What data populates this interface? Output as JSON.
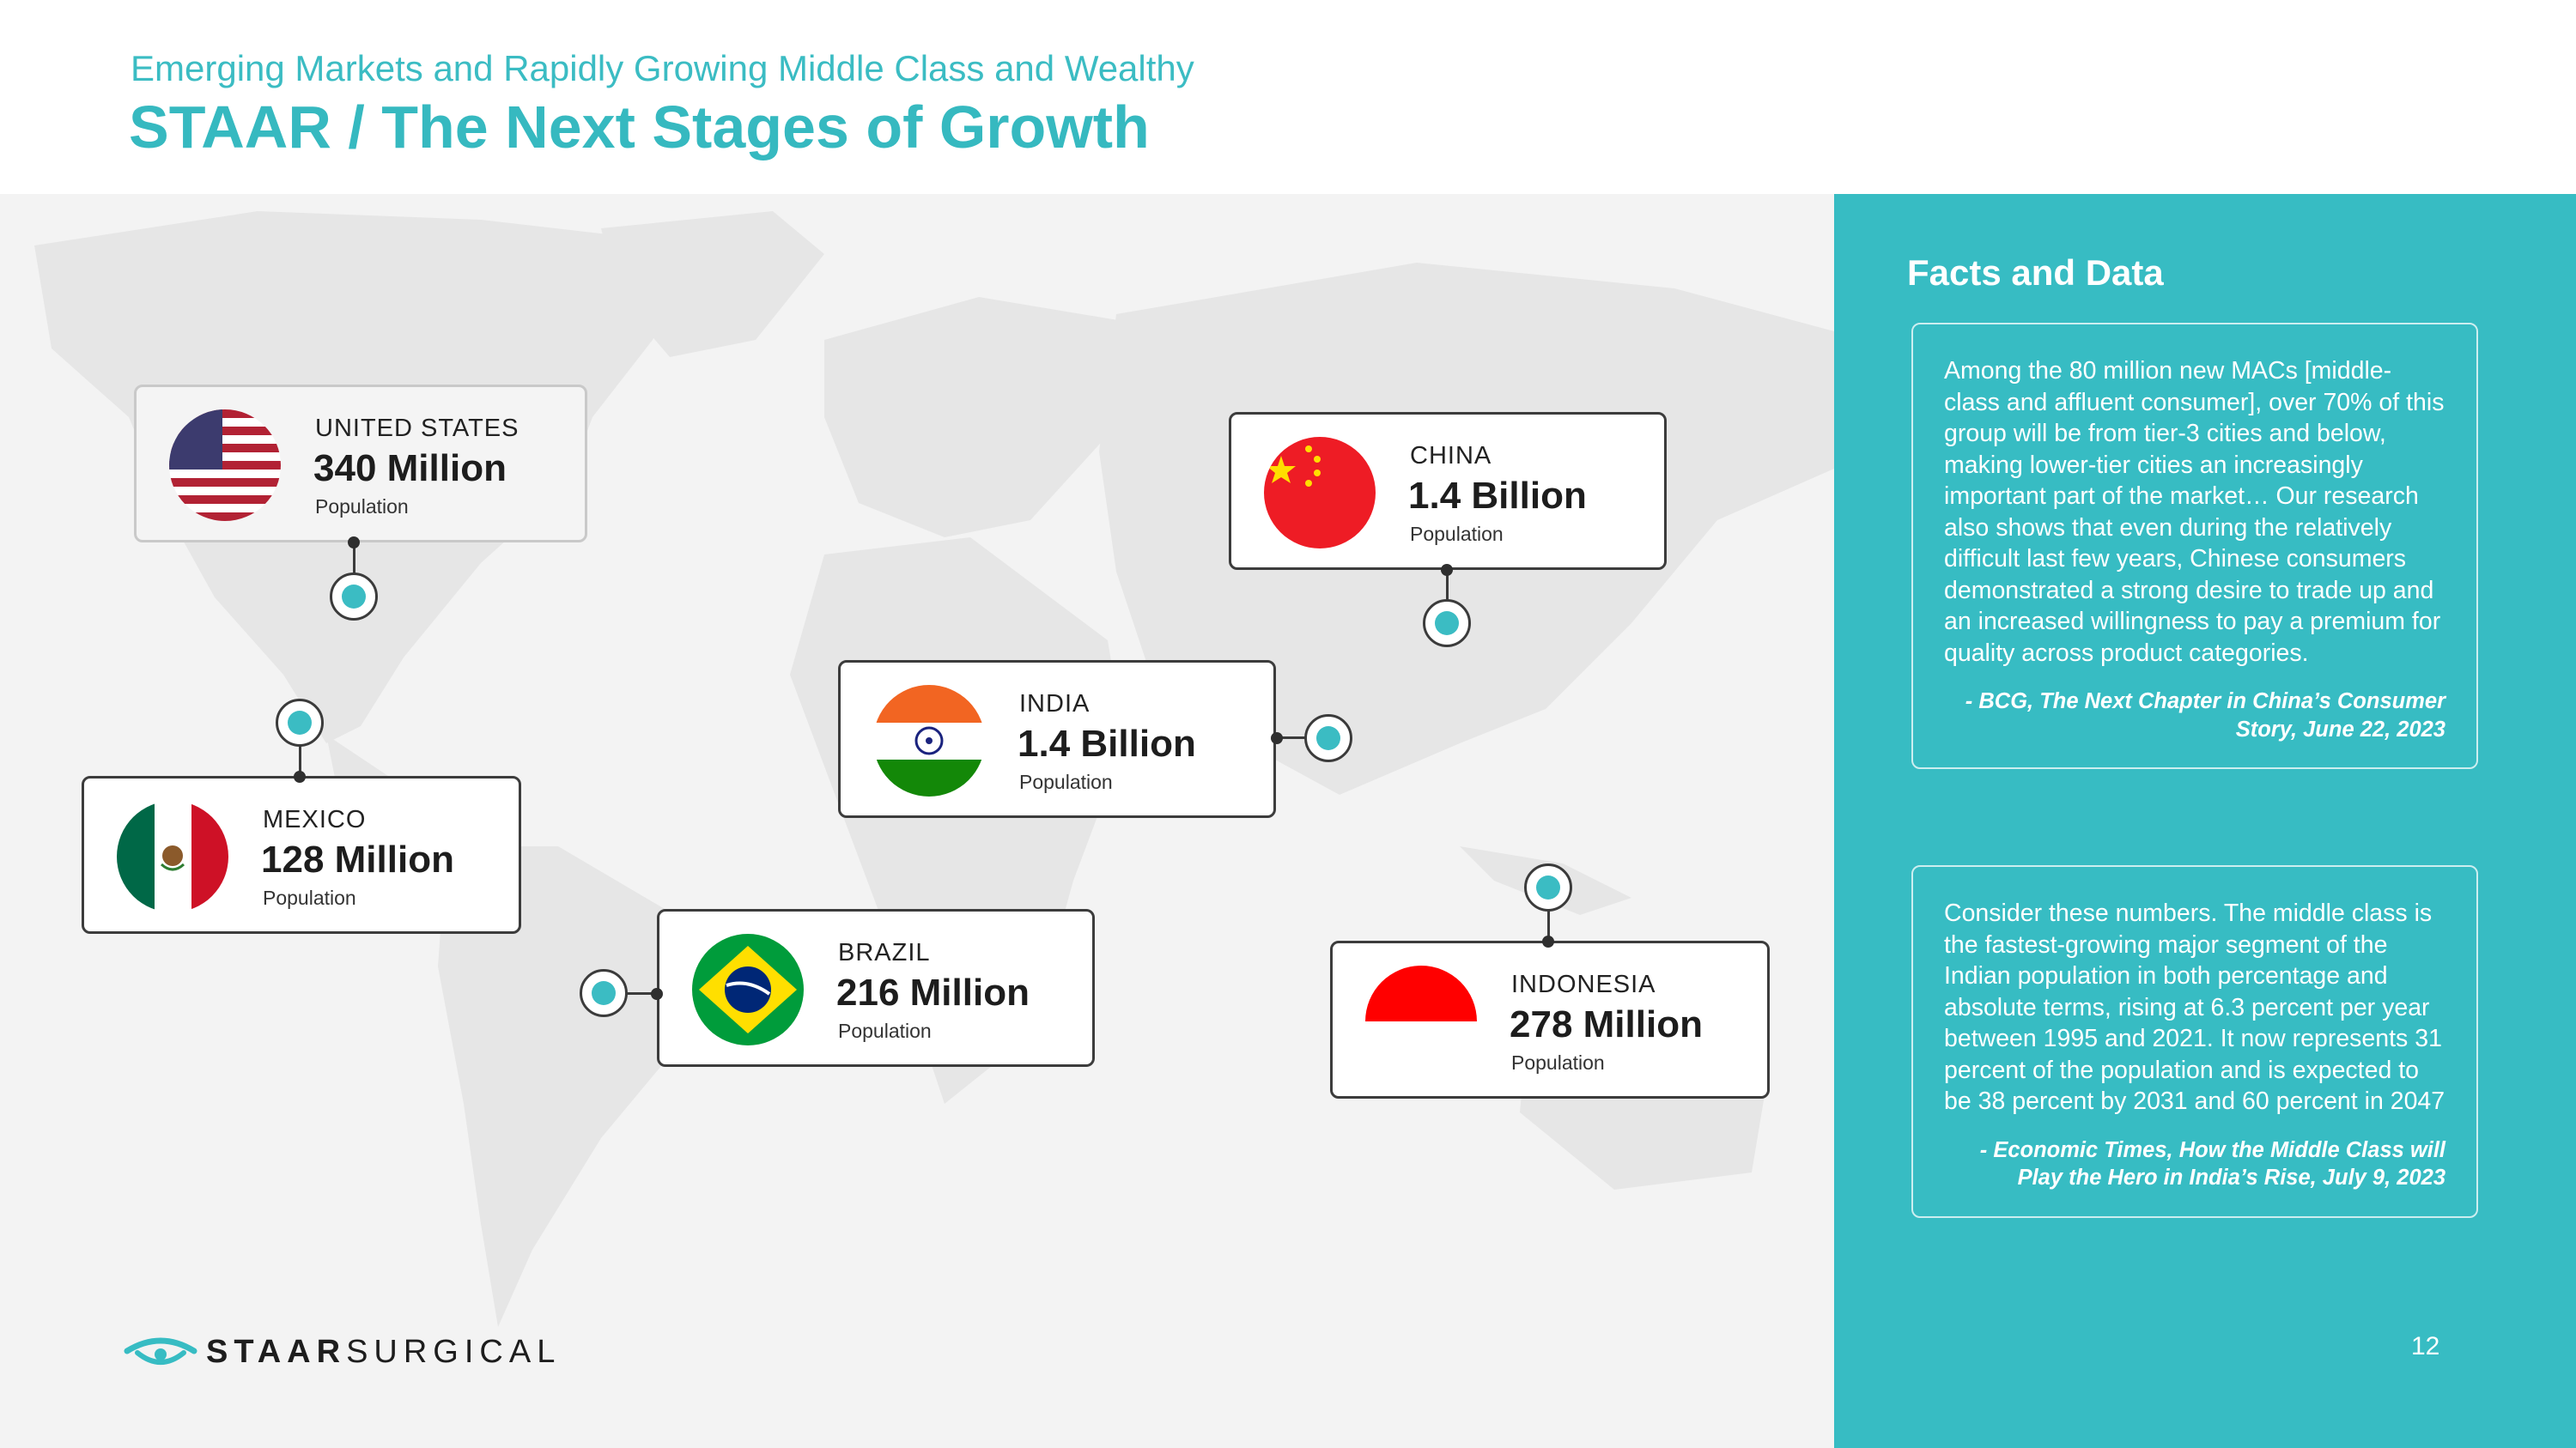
{
  "header": {
    "subtitle": "Emerging Markets and Rapidly Growing Middle Class and Wealthy",
    "title": "STAAR / The Next Stages of Growth"
  },
  "countries": [
    {
      "id": "us",
      "name": "UNITED STATES",
      "value": "340 Million",
      "label": "Population"
    },
    {
      "id": "china",
      "name": "CHINA",
      "value": "1.4 Billion",
      "label": "Population"
    },
    {
      "id": "india",
      "name": "INDIA",
      "value": "1.4 Billion",
      "label": "Population"
    },
    {
      "id": "mexico",
      "name": "MEXICO",
      "value": "128 Million",
      "label": "Population"
    },
    {
      "id": "brazil",
      "name": "BRAZIL",
      "value": "216 Million",
      "label": "Population"
    },
    {
      "id": "indonesia",
      "name": "INDONESIA",
      "value": "278 Million",
      "label": "Population"
    }
  ],
  "panel": {
    "title": "Facts and Data",
    "quotes": [
      {
        "text": "Among the 80 million new MACs [middle-class and affluent consumer], over 70% of this group will be from tier-3 cities and below, making lower-tier cities an increasingly important part of the market… Our research also shows that even during the relatively difficult last few years, Chinese consumers demonstrated a strong desire to trade up and an increased willingness to pay a premium for quality across product categories.",
        "source": "- BCG, The Next Chapter in China’s Consumer Story, June 22, 2023"
      },
      {
        "text": "Consider these numbers. The middle class is the fastest-growing major segment of the Indian population in both percentage and absolute terms, rising at 6.3 percent per year between 1995 and 2021. It now represents 31 percent of the population and is expected to be 38 percent by 2031 and 60 percent in 2047",
        "source": "- Economic Times, How the Middle Class will Play the Hero in India’s Rise, July 9, 2023"
      }
    ]
  },
  "footer": {
    "logo_bold": "STAAR",
    "logo_light": "SURGICAL",
    "page_number": "12"
  },
  "colors": {
    "accent": "#37bcc3",
    "map_land": "#e6e6e6",
    "map_background": "#f3f3f3"
  }
}
